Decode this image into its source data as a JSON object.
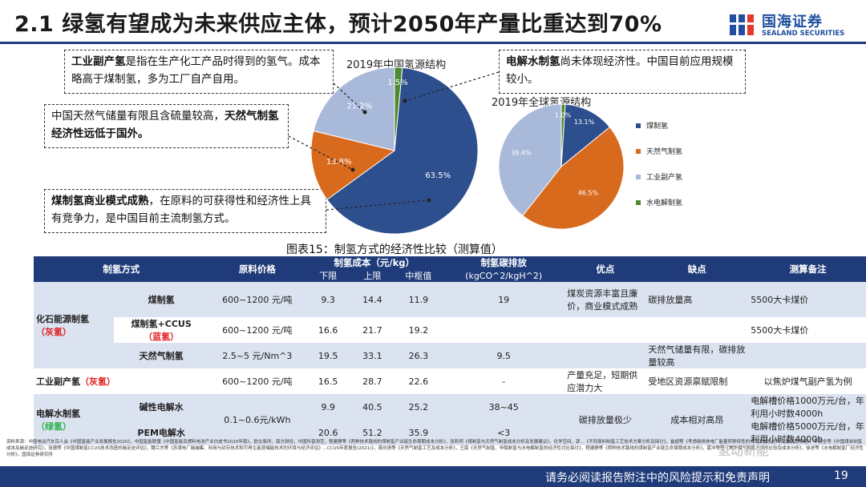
{
  "header": {
    "title": "2.1 绿氢有望成为未来供应主体，预计2050年产量比重达到70%",
    "logo_cn": "国海证券",
    "logo_en": "SEALAND SECURITIES",
    "accent_color": "#1f3b7a"
  },
  "callouts": {
    "c1_bold": "工业副产氢",
    "c1_text": "是指在生产化工产品时得到的氢气。成本略高于煤制氢，多为工厂自产自用。",
    "c2_text": "中国天然气储量有限且含硫量较高，",
    "c2_bold": "天然气制氢经济性远低于国外。",
    "c3_bold": "煤制氢商业模式成熟",
    "c3_text": "，在原料的可获得性和经济性上具有竞争力，是中国目前主流制氢方式。",
    "c4_bold": "电解水制氢",
    "c4_text": "尚未体现经济性。中国目前应用规模较小。"
  },
  "chart_data": [
    {
      "type": "pie",
      "title": "2019年中国氢源结构",
      "labels": [
        "煤制氢",
        "天然气制氢",
        "工业副产氢",
        "水电解制氢"
      ],
      "values": [
        63.5,
        13.8,
        21.2,
        1.5
      ],
      "value_labels": [
        "63.5%",
        "13.8%",
        "21.2%",
        "1.5%"
      ],
      "colors": [
        "#2e4f8e",
        "#d86a1e",
        "#a9b9da",
        "#4f8a32"
      ]
    },
    {
      "type": "pie",
      "title": "2019年全球氢源结构",
      "labels": [
        "煤制氢",
        "天然气制氢",
        "工业副产氢",
        "水电解制氢"
      ],
      "values": [
        13.1,
        46.5,
        39.4,
        1.0
      ],
      "value_labels": [
        "13.1%",
        "46.5%",
        "39.4%",
        "1.0%"
      ],
      "colors": [
        "#2e4f8e",
        "#d86a1e",
        "#a9b9da",
        "#4f8a32"
      ],
      "legend": [
        "煤制氢",
        "天然气制氢",
        "工业副产氢",
        "水电解制氢"
      ],
      "legend_position": "right"
    }
  ],
  "table": {
    "caption": "图表15：制氢方式的经济性比较（测算值）",
    "headers": {
      "method": "制氢方式",
      "price": "原料价格",
      "cost": "制氢成本（元/kg）",
      "low": "下限",
      "high": "上限",
      "mid": "中枢值",
      "emission": "制氢碳排放",
      "emission_unit": "(kgCO^2/kgH^2)",
      "pros": "优点",
      "cons": "缺点",
      "notes": "测算备注"
    },
    "groups": {
      "fossil": "化石能源制氢",
      "fossil_tag": "（灰氢）",
      "industrial": "工业副产氢",
      "industrial_tag": "（灰氢）",
      "electro": "电解水制氢",
      "electro_tag": "（绿氢）"
    },
    "rows": {
      "coal": {
        "name": "煤制氢",
        "price": "600~1200 元/吨",
        "low": "9.3",
        "high": "14.4",
        "mid": "11.9",
        "emission": "19",
        "pros": "煤炭资源丰富且廉价，商业模式成熟",
        "cons": "碳排放量高",
        "notes": "5500大卡煤价"
      },
      "ccus": {
        "name": "煤制氢+CCUS",
        "name_tag": "（蓝氢）",
        "price": "600~1200 元/吨",
        "low": "16.6",
        "high": "21.7",
        "mid": "19.2",
        "emission": "",
        "notes": "5500大卡煤价"
      },
      "gas": {
        "name": "天然气制氢",
        "price": "2.5~5 元/Nm^3",
        "low": "19.5",
        "high": "33.1",
        "mid": "26.3",
        "emission": "9.5",
        "cons": "天然气储量有限，碳排放量较高"
      },
      "industrial": {
        "price": "600~1200 元/吨",
        "low": "16.5",
        "high": "28.7",
        "mid": "22.6",
        "emission": "-",
        "pros": "产量充足，短期供应潜力大",
        "cons": "受地区资源禀赋限制",
        "notes": "以焦炉煤气副产氢为例"
      },
      "alk": {
        "name": "碱性电解水",
        "price": "0.1~0.6元/kWh",
        "low": "9.9",
        "high": "40.5",
        "mid": "25.2",
        "emission": "38~45",
        "pros": "碳排放量极少",
        "cons": "成本相对高昂",
        "notes": "电解槽价格1000万元/台，年利用小时数4000h"
      },
      "pem": {
        "name": "PEM电解水",
        "low": "20.6",
        "high": "51.2",
        "mid": "35.9",
        "emission": "<3",
        "notes": "电解槽价格5000万元/台，年利用小时数4000h"
      }
    }
  },
  "source": "资料来源：中国电动汽车百人会《中国氢能产业发展报告2020》，中国氢能联盟《中国氢能及燃料电池产业白皮书2020年版》，欧交易所，南方财经，中国科普测范，程建静等《两种技术路线的煤制氢产业链生命周期成本分析》，张彩明《煤制氢与天然气制氢成本分析及发展建议》，化学空间，郭...《不同原料制氢工艺技术方案分析及探讨》，崔超等《考虑碳排放电厂能量转移特性的共风消纳多时间尺度调度策略》，李家全等《中国煤炭制氢成本及碳足迹研究》，张德等《中国煤制氢CCUS技术改造的碳足迹评估》，魏兰杰等《苏煤电厂碳捕集、利用与封存技术和可再生能源储能技术的环境与经济评估》...CCUS年度报告(2021)》，蒋欣清等《天然气制氢工艺及成本分析》，王南《天然气制氢、甲醇制氢与水电解制氢的经济性对比探讨》，程建静等《两种技术路线的煤制氢产业链生命周期成本分析》，霍冲等等《焦炉煤气制氢方法的比较及成本分析》，徐进等《水电解制氢厂经济性分析》，国海证券研究所",
  "watermark": "氢动新能",
  "footer": {
    "disclaimer": "请务必阅读报告附注中的风险提示和免责声明",
    "page": "19"
  }
}
